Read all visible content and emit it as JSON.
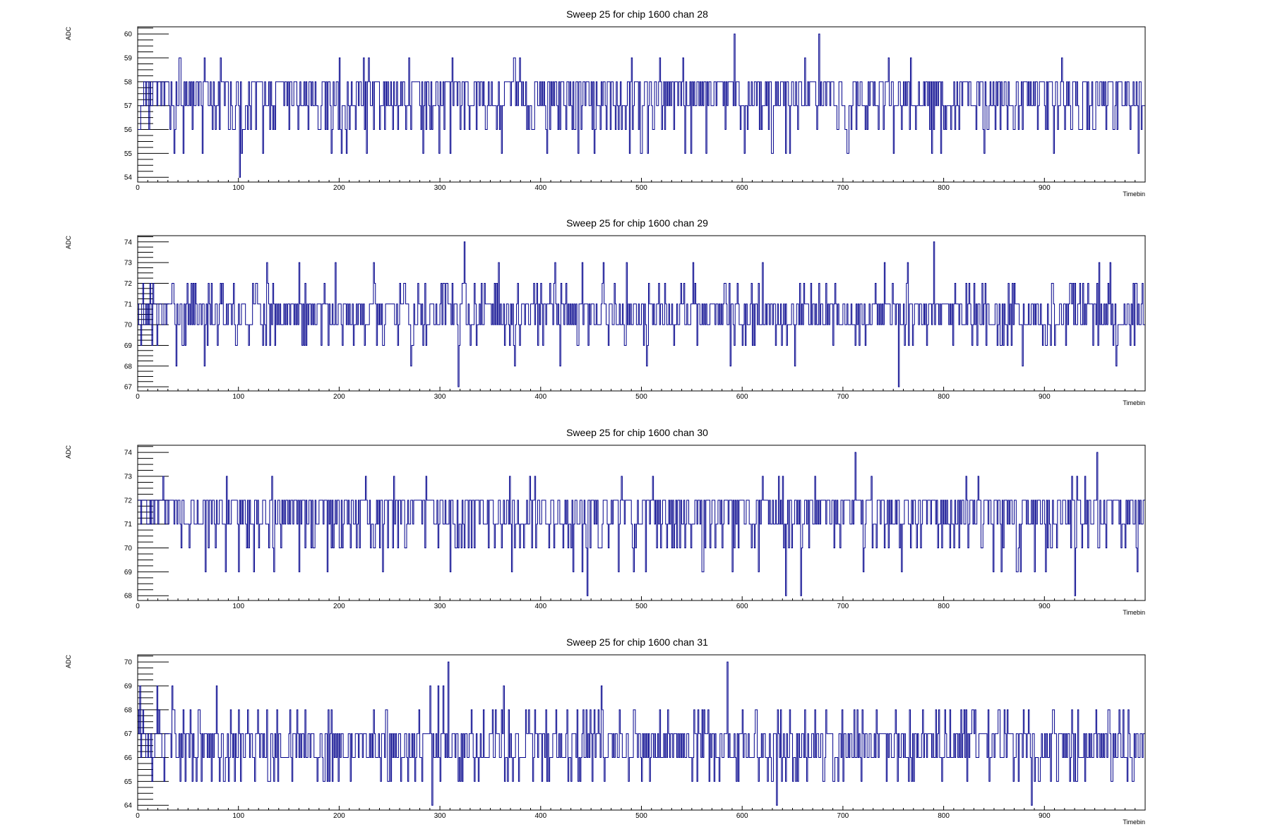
{
  "colors": {
    "line": "#00008b",
    "axis": "#000000",
    "background": "#ffffff"
  },
  "chart_data": [
    {
      "type": "line",
      "title": "Sweep 25 for chip 1600 chan 28",
      "xlabel": "Timebin",
      "ylabel": "ADC",
      "xlim": [
        0,
        1000
      ],
      "ylim": [
        53.8,
        60.3
      ],
      "xticks": [
        0,
        100,
        200,
        300,
        400,
        500,
        600,
        700,
        800,
        900
      ],
      "yticks": [
        54,
        55,
        56,
        57,
        58,
        59,
        60
      ],
      "series": [
        {
          "baseline": 57,
          "values_note": "step histogram, ADC values per timebin",
          "spikes": [
            [
              101,
              54
            ],
            [
              592,
              60
            ],
            [
              676,
              60
            ],
            [
              45,
              55
            ],
            [
              192,
              55
            ],
            [
              202,
              55
            ],
            [
              453,
              55
            ],
            [
              506,
              55
            ],
            [
              564,
              55
            ],
            [
              630,
              55
            ],
            [
              788,
              55
            ],
            [
              797,
              55
            ],
            [
              909,
              55
            ]
          ]
        }
      ]
    },
    {
      "type": "line",
      "title": "Sweep 25 for chip 1600 chan 29",
      "xlabel": "Timebin",
      "ylabel": "ADC",
      "xlim": [
        0,
        1000
      ],
      "ylim": [
        66.8,
        74.3
      ],
      "xticks": [
        0,
        100,
        200,
        300,
        400,
        500,
        600,
        700,
        800,
        900
      ],
      "yticks": [
        67,
        68,
        69,
        70,
        71,
        72,
        73,
        74
      ],
      "series": [
        {
          "baseline": 70.5,
          "spikes": [
            [
              324,
              74
            ],
            [
              790,
              74
            ],
            [
              318,
              67
            ],
            [
              755,
              67
            ],
            [
              38,
              68
            ],
            [
              66,
              68
            ],
            [
              271,
              68
            ],
            [
              374,
              68
            ],
            [
              419,
              68
            ],
            [
              505,
              68
            ],
            [
              588,
              68
            ],
            [
              652,
              68
            ],
            [
              878,
              68
            ],
            [
              971,
              68
            ]
          ]
        }
      ]
    },
    {
      "type": "line",
      "title": "Sweep 25 for chip 1600 chan 30",
      "xlabel": "Timebin",
      "ylabel": "ADC",
      "xlim": [
        0,
        1000
      ],
      "ylim": [
        67.8,
        74.3
      ],
      "xticks": [
        0,
        100,
        200,
        300,
        400,
        500,
        600,
        700,
        800,
        900
      ],
      "yticks": [
        68,
        69,
        70,
        71,
        72,
        73,
        74
      ],
      "series": [
        {
          "baseline": 71,
          "spikes": [
            [
              712,
              74
            ],
            [
              952,
              74
            ],
            [
              446,
              68
            ],
            [
              643,
              68
            ],
            [
              658,
              68
            ],
            [
              930,
              68
            ],
            [
              67,
              69
            ],
            [
              87,
              69
            ],
            [
              135,
              69
            ],
            [
              160,
              69
            ],
            [
              188,
              69
            ],
            [
              243,
              69
            ],
            [
              310,
              69
            ],
            [
              441,
              69
            ],
            [
              492,
              69
            ],
            [
              560,
              69
            ],
            [
              876,
              69
            ],
            [
              901,
              69
            ]
          ]
        }
      ]
    },
    {
      "type": "line",
      "title": "Sweep 25 for chip 1600 chan 31",
      "xlabel": "Timebin",
      "ylabel": "ADC",
      "xlim": [
        0,
        1000
      ],
      "ylim": [
        63.8,
        70.3
      ],
      "xticks": [
        0,
        100,
        200,
        300,
        400,
        500,
        600,
        700,
        800,
        900
      ],
      "yticks": [
        64,
        65,
        66,
        67,
        68,
        69,
        70
      ],
      "series": [
        {
          "baseline": 66.5,
          "spikes": [
            [
              308,
              70
            ],
            [
              585,
              70
            ],
            [
              292,
              64
            ],
            [
              634,
              64
            ],
            [
              887,
              64
            ],
            [
              14,
              65
            ],
            [
              63,
              65
            ],
            [
              96,
              65
            ],
            [
              190,
              65
            ],
            [
              282,
              65
            ],
            [
              300,
              65
            ],
            [
              430,
              65
            ],
            [
              437,
              65
            ],
            [
              508,
              65
            ],
            [
              572,
              65
            ],
            [
              690,
              65
            ],
            [
              940,
              65
            ],
            [
              988,
              65
            ]
          ]
        }
      ]
    }
  ]
}
